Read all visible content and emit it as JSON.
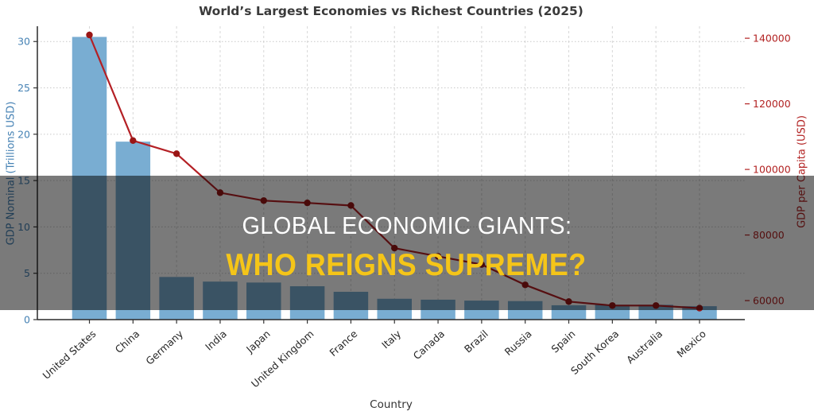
{
  "banner": {
    "line1": "GLOBAL ECONOMIC GIANTS:",
    "line2": "WHO REIGNS SUPREME?",
    "line1_color": "#FFFFFF",
    "line2_color": "#F5C518",
    "overlay_color": "rgba(0,0,0,0.52)"
  },
  "chart_data": {
    "type": "combo",
    "title": "World’s Largest Economies vs Richest Countries (2025)",
    "xlabel": "Country",
    "categories": [
      "United States",
      "China",
      "Germany",
      "India",
      "Japan",
      "United Kingdom",
      "France",
      "Italy",
      "Canada",
      "Brazil",
      "Russia",
      "Spain",
      "South Korea",
      "Australia",
      "Mexico"
    ],
    "series": [
      {
        "name": "GDP Nominal (Trillions USD)",
        "type": "bar",
        "axis": "left",
        "color": "#79ADD2",
        "values": [
          30.5,
          19.2,
          4.6,
          4.1,
          4.0,
          3.6,
          3.0,
          2.25,
          2.15,
          2.05,
          2.0,
          1.55,
          1.6,
          1.6,
          1.45
        ]
      },
      {
        "name": "GDP per Capita (USD)",
        "type": "line",
        "axis": "right",
        "color": "#B42025",
        "marker_color": "#9A1515",
        "values": [
          141000,
          108800,
          104800,
          92900,
          90500,
          89800,
          89000,
          76000,
          73500,
          71000,
          64800,
          59700,
          58500,
          58500,
          57700
        ]
      }
    ],
    "left_axis": {
      "label": "GDP Nominal (Trillions USD)",
      "color": "#4682B4",
      "ticks": [
        0,
        5,
        10,
        15,
        20,
        25,
        30
      ],
      "range": [
        0,
        31.65
      ]
    },
    "right_axis": {
      "label": "GDP per Capita (USD)",
      "color": "#B22222",
      "ticks": [
        60000,
        80000,
        100000,
        120000,
        140000
      ],
      "range": [
        54200,
        143660
      ]
    },
    "grid": {
      "horizontal": true,
      "vertical": true,
      "style": "dotted"
    },
    "legend": "none"
  }
}
